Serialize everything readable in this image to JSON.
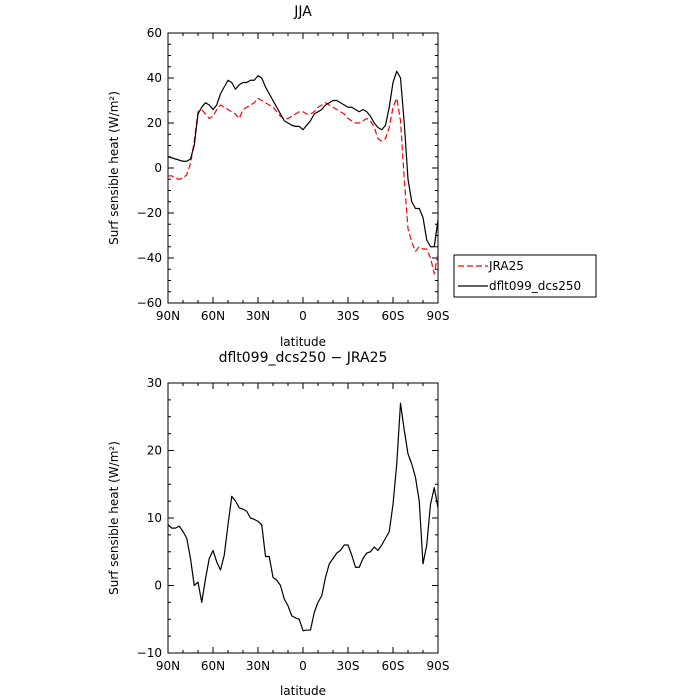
{
  "chart_data": [
    {
      "type": "line",
      "title": "JJA",
      "xlabel": "latitude",
      "ylabel": "Surf sensible heat (W/m²)",
      "xlim": [
        90,
        -90
      ],
      "ylim": [
        -60,
        60
      ],
      "x_ticks": [
        90,
        60,
        30,
        0,
        -30,
        -60,
        -90
      ],
      "x_tick_labels": [
        "90N",
        "60N",
        "30N",
        "0",
        "30S",
        "60S",
        "90S"
      ],
      "y_ticks": [
        -60,
        -40,
        -20,
        0,
        20,
        40,
        60
      ],
      "y_tick_labels": [
        "−60",
        "−40",
        "−20",
        "0",
        "20",
        "40",
        "60"
      ],
      "legend_position": "right-bottom",
      "series": [
        {
          "name": "JRA25",
          "color": "#ff0000",
          "dash": "dashed",
          "x": [
            90,
            87.5,
            85,
            82.5,
            80,
            77.5,
            75,
            72.5,
            70,
            67.5,
            65,
            62.5,
            60,
            57.5,
            55,
            52.5,
            50,
            47.5,
            45,
            42.5,
            40,
            37.5,
            35,
            32.5,
            30,
            27.5,
            25,
            22.5,
            20,
            17.5,
            15,
            12.5,
            10,
            7.5,
            5,
            2.5,
            0,
            -2.5,
            -5,
            -7.5,
            -10,
            -12.5,
            -15,
            -17.5,
            -20,
            -22.5,
            -25,
            -27.5,
            -30,
            -32.5,
            -35,
            -37.5,
            -40,
            -42.5,
            -45,
            -47.5,
            -50,
            -52.5,
            -55,
            -57.5,
            -60,
            -62.5,
            -65,
            -67.5,
            -70,
            -72.5,
            -75,
            -77.5,
            -80,
            -82.5,
            -85,
            -87.5,
            -90
          ],
          "y": [
            -3.5,
            -3.5,
            -4.5,
            -5,
            -4.5,
            -3,
            2,
            12,
            25,
            26,
            24,
            22,
            23,
            26,
            28,
            27,
            26,
            25,
            24,
            22,
            26,
            27,
            28,
            29,
            31,
            30,
            29,
            28,
            27,
            25,
            23,
            22,
            22,
            23,
            24,
            25,
            25,
            24,
            24,
            25,
            27,
            28,
            29,
            28,
            27,
            26,
            25,
            24,
            22,
            21,
            20,
            20,
            21,
            22,
            21,
            18,
            13,
            12,
            13,
            18,
            27,
            31,
            21,
            -5,
            -27,
            -33,
            -37,
            -35,
            -36,
            -36,
            -40,
            -47,
            -38
          ]
        },
        {
          "name": "dflt099_dcs250",
          "color": "#000000",
          "dash": "solid",
          "x": [
            90,
            87.5,
            85,
            82.5,
            80,
            77.5,
            75,
            72.5,
            70,
            67.5,
            65,
            62.5,
            60,
            57.5,
            55,
            52.5,
            50,
            47.5,
            45,
            42.5,
            40,
            37.5,
            35,
            32.5,
            30,
            27.5,
            25,
            22.5,
            20,
            17.5,
            15,
            12.5,
            10,
            7.5,
            5,
            2.5,
            0,
            -2.5,
            -5,
            -7.5,
            -10,
            -12.5,
            -15,
            -17.5,
            -20,
            -22.5,
            -25,
            -27.5,
            -30,
            -32.5,
            -35,
            -37.5,
            -40,
            -42.5,
            -45,
            -47.5,
            -50,
            -52.5,
            -55,
            -57.5,
            -60,
            -62.5,
            -65,
            -67.5,
            -70,
            -72.5,
            -75,
            -77.5,
            -80,
            -82.5,
            -85,
            -87.5,
            -90
          ],
          "y": [
            5,
            4.5,
            4,
            3.5,
            3,
            3,
            4,
            10,
            24,
            27,
            29,
            28,
            26,
            28,
            33,
            36,
            39,
            38,
            35,
            37,
            38,
            38,
            39,
            39,
            41,
            40,
            36,
            33,
            30,
            27,
            24,
            21,
            20,
            19,
            18.5,
            18.5,
            17,
            19,
            21,
            24,
            25,
            26,
            28,
            29,
            30,
            30,
            29,
            28,
            27,
            27,
            26,
            25,
            26,
            25,
            23,
            20,
            18,
            17,
            19,
            27,
            38,
            43,
            40,
            20,
            -5,
            -15,
            -18,
            -18,
            -22,
            -32,
            -35,
            -35,
            -23
          ]
        }
      ]
    },
    {
      "type": "line",
      "title": "dflt099_dcs250 − JRA25",
      "xlabel": "latitude",
      "ylabel": "Surf sensible heat (W/m²)",
      "xlim": [
        90,
        -90
      ],
      "ylim": [
        -10,
        30
      ],
      "x_ticks": [
        90,
        60,
        30,
        0,
        -30,
        -60,
        -90
      ],
      "x_tick_labels": [
        "90N",
        "60N",
        "30N",
        "0",
        "30S",
        "60S",
        "90S"
      ],
      "y_ticks": [
        -10,
        0,
        10,
        20,
        30
      ],
      "y_tick_labels": [
        "−10",
        "0",
        "10",
        "20",
        "30"
      ],
      "series": [
        {
          "color": "#000000",
          "dash": "solid",
          "x": [
            90,
            87.5,
            85,
            82.5,
            80,
            77.5,
            75,
            72.5,
            70,
            67.5,
            65,
            62.5,
            60,
            57.5,
            55,
            52.5,
            50,
            47.5,
            45,
            42.5,
            40,
            37.5,
            35,
            32.5,
            30,
            27.5,
            25,
            22.5,
            20,
            17.5,
            15,
            12.5,
            10,
            7.5,
            5,
            2.5,
            0,
            -2.5,
            -5,
            -7.5,
            -10,
            -12.5,
            -15,
            -17.5,
            -20,
            -22.5,
            -25,
            -27.5,
            -30,
            -32.5,
            -35,
            -37.5,
            -40,
            -42.5,
            -45,
            -47.5,
            -50,
            -52.5,
            -55,
            -57.5,
            -60,
            -62.5,
            -65,
            -67.5,
            -70,
            -72.5,
            -75,
            -77.5,
            -80,
            -82.5,
            -85,
            -87.5,
            -90
          ],
          "y": [
            9,
            8.5,
            8.5,
            8.8,
            8,
            7,
            4,
            0,
            0.5,
            -2.5,
            1,
            4,
            5.2,
            3.5,
            2.3,
            4.5,
            9,
            13.2,
            12.5,
            11.5,
            11.3,
            11,
            10,
            9.8,
            9.5,
            9,
            4.3,
            4.3,
            1.2,
            0.8,
            0,
            -2,
            -3,
            -4.5,
            -4.8,
            -5,
            -6.7,
            -6.6,
            -6.6,
            -4,
            -2.5,
            -1.5,
            1.2,
            3.2,
            4,
            4.8,
            5.2,
            6,
            6,
            4.5,
            2.7,
            2.7,
            4,
            4.8,
            5,
            5.7,
            5.2,
            6,
            7,
            8,
            12,
            18,
            27,
            23,
            19.5,
            18,
            16,
            12.5,
            3.2,
            6,
            12,
            14.5,
            11.5
          ]
        }
      ]
    }
  ]
}
